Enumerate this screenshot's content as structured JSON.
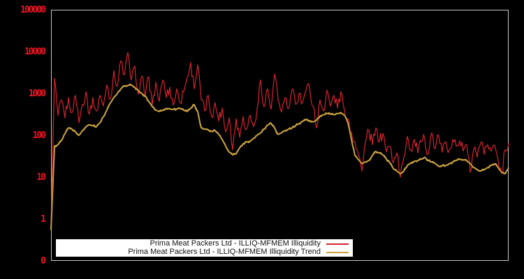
{
  "colors": {
    "background": "#000000",
    "frame": "#c6c6c6",
    "tick_label": "#ee1325",
    "illiquidity_line": "#d8232e",
    "trend_line": "#c9a13d",
    "legend_background": "#ffffff",
    "legend_text": "#111111"
  },
  "chart_data": {
    "type": "line",
    "yscale": "log",
    "ylim": [
      0.1,
      100000
    ],
    "grid": false,
    "legend_position": "bottom-center",
    "xlabel": "",
    "ylabel": "",
    "yticks": [
      {
        "label": "100000",
        "value": 100000
      },
      {
        "label": "10000",
        "value": 10000
      },
      {
        "label": "1000",
        "value": 1000
      },
      {
        "label": "100",
        "value": 100
      },
      {
        "label": "10",
        "value": 10
      },
      {
        "label": "1",
        "value": 1
      },
      {
        "label": "0",
        "value": 0.1
      }
    ],
    "series": [
      {
        "name": "Prima Meat Packers Ltd - ILLIQ-MFMEM Illiquidity",
        "color": "#d8232e",
        "values": [
          0.65,
          2300,
          300,
          700,
          260,
          800,
          350,
          900,
          200,
          550,
          1100,
          320,
          800,
          380,
          900,
          500,
          1600,
          750,
          3500,
          1500,
          6000,
          2800,
          9500,
          2100,
          4500,
          960,
          2600,
          860,
          2500,
          540,
          1850,
          650,
          2100,
          800,
          1400,
          520,
          1300,
          600,
          1100,
          2400,
          5500,
          1300,
          4800,
          700,
          380,
          900,
          280,
          600,
          220,
          450,
          120,
          260,
          45,
          250,
          90,
          280,
          140,
          300,
          160,
          420,
          2100,
          480,
          1300,
          420,
          2900,
          700,
          360,
          800,
          440,
          1250,
          550,
          1000,
          620,
          1200,
          1430,
          500,
          150,
          700,
          380,
          1200,
          500,
          900,
          450,
          1100,
          400,
          250,
          120,
          70,
          35,
          14,
          70,
          130,
          60,
          150,
          70,
          110,
          40,
          55,
          22,
          38,
          10,
          30,
          95,
          45,
          80,
          38,
          70,
          80,
          36,
          115,
          48,
          95,
          40,
          70,
          45,
          80,
          55,
          74,
          42,
          60,
          13,
          45,
          30,
          65,
          35,
          60,
          42,
          58,
          25,
          12,
          45,
          65
        ]
      },
      {
        "name": "Prima Meat Packers Ltd - ILLIQ-MFMEM Illiquidity Trend",
        "color": "#c9a13d",
        "values": [
          0.55,
          55,
          60,
          75,
          110,
          150,
          140,
          120,
          100,
          130,
          160,
          180,
          170,
          160,
          200,
          280,
          400,
          600,
          800,
          1000,
          1300,
          1520,
          1550,
          1600,
          1400,
          1160,
          1000,
          860,
          640,
          480,
          400,
          370,
          400,
          440,
          430,
          415,
          430,
          440,
          400,
          370,
          450,
          540,
          370,
          150,
          140,
          135,
          125,
          130,
          105,
          80,
          55,
          40,
          34,
          36,
          50,
          63,
          70,
          72,
          85,
          100,
          115,
          140,
          175,
          195,
          150,
          105,
          115,
          130,
          140,
          150,
          170,
          190,
          215,
          235,
          225,
          210,
          230,
          290,
          310,
          330,
          320,
          310,
          330,
          350,
          300,
          200,
          80,
          33,
          26,
          21,
          23,
          25,
          33,
          41,
          38,
          34,
          27,
          22,
          16,
          14,
          12,
          14,
          19,
          22,
          24,
          25,
          27,
          30,
          25,
          23,
          21,
          18,
          19,
          19,
          21,
          23,
          25,
          27,
          26,
          25,
          21,
          17,
          15,
          14,
          15,
          17,
          19,
          21,
          17,
          13,
          12,
          17
        ]
      }
    ]
  }
}
